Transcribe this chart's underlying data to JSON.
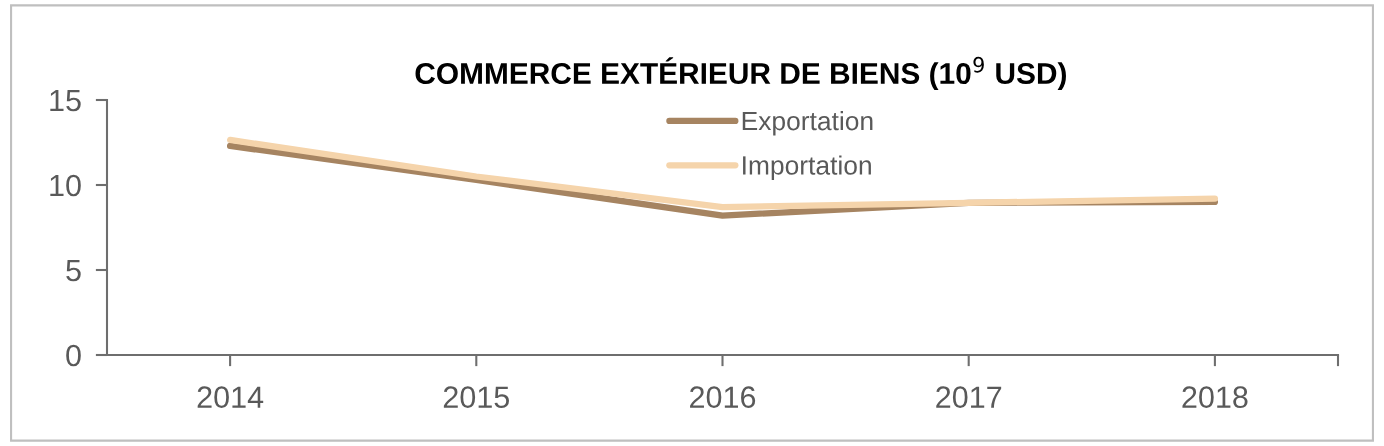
{
  "chart_data": {
    "type": "line",
    "title": "COMMERCE EXTÉRIEUR DE BIENS (10$^{9}$ USD)",
    "categories": [
      "2014",
      "2015",
      "2016",
      "2017",
      "2018"
    ],
    "series": [
      {
        "name": "Exportation",
        "color": "#a68461",
        "values": [
          12.3,
          10.3,
          8.2,
          8.95,
          9.0
        ]
      },
      {
        "name": "Importation",
        "color": "#f5d4ab",
        "values": [
          12.65,
          10.5,
          8.7,
          8.95,
          9.2
        ]
      }
    ],
    "ylim": [
      0,
      15
    ],
    "yticks": [
      0,
      5,
      10,
      15
    ],
    "grid": false,
    "legend": "top",
    "marker": "none",
    "line_style": "solid"
  }
}
